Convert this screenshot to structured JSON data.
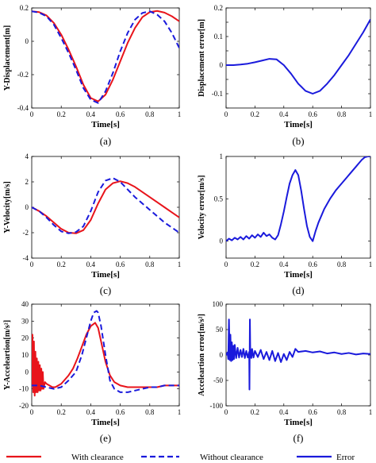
{
  "colors": {
    "with_clearance": "#e8141b",
    "without_clearance": "#1a1adc",
    "error": "#1a1adc"
  },
  "legend": {
    "entries": [
      {
        "key": "with",
        "label": "With clearance",
        "style": "solid",
        "color": "#e8141b"
      },
      {
        "key": "without",
        "label": "Without clearance",
        "style": "dashed",
        "color": "#1a1adc"
      },
      {
        "key": "error",
        "label": "Error",
        "style": "solid",
        "color": "#1a1adc"
      }
    ]
  },
  "chart_data": [
    {
      "id": "a",
      "caption": "(a)",
      "type": "line",
      "xlabel": "Time[s]",
      "ylabel": "Y-Displacement[m]",
      "xlim": [
        0,
        1
      ],
      "ylim": [
        -0.4,
        0.2
      ],
      "xticks": [
        0,
        0.2,
        0.4,
        0.6,
        0.8,
        1
      ],
      "xtick_labels": [
        "0",
        "0.2",
        "0.4",
        "0.6",
        "0.8",
        "1"
      ],
      "yticks": [
        -0.4,
        -0.2,
        0,
        0.2
      ],
      "ytick_labels": [
        "-0.4",
        "-0.2",
        "0",
        "0.2"
      ],
      "series": [
        {
          "key": "with",
          "x": [
            0,
            0.05,
            0.1,
            0.15,
            0.2,
            0.25,
            0.3,
            0.35,
            0.4,
            0.45,
            0.5,
            0.55,
            0.6,
            0.65,
            0.7,
            0.75,
            0.8,
            0.85,
            0.9,
            0.95,
            1.0
          ],
          "y": [
            0.18,
            0.175,
            0.155,
            0.11,
            0.04,
            -0.05,
            -0.15,
            -0.26,
            -0.34,
            -0.36,
            -0.32,
            -0.23,
            -0.12,
            -0.01,
            0.08,
            0.145,
            0.175,
            0.182,
            0.172,
            0.15,
            0.12
          ]
        },
        {
          "key": "without",
          "x": [
            0,
            0.05,
            0.1,
            0.15,
            0.2,
            0.25,
            0.3,
            0.35,
            0.4,
            0.45,
            0.5,
            0.55,
            0.6,
            0.65,
            0.7,
            0.75,
            0.8,
            0.85,
            0.9,
            0.95,
            1.0
          ],
          "y": [
            0.18,
            0.172,
            0.15,
            0.1,
            0.02,
            -0.07,
            -0.17,
            -0.28,
            -0.35,
            -0.37,
            -0.3,
            -0.19,
            -0.06,
            0.05,
            0.13,
            0.17,
            0.18,
            0.16,
            0.12,
            0.05,
            -0.04
          ]
        }
      ]
    },
    {
      "id": "b",
      "caption": "(b)",
      "type": "line",
      "xlabel": "Time[s]",
      "ylabel": "Displacement error[m]",
      "xlim": [
        0,
        1
      ],
      "ylim": [
        -0.15,
        0.2
      ],
      "xticks": [
        0,
        0.2,
        0.4,
        0.6,
        0.8,
        1
      ],
      "xtick_labels": [
        "0",
        "0.2",
        "0.4",
        "0.6",
        "0.8",
        "1"
      ],
      "yticks": [
        -0.15,
        -0.1,
        -0.05,
        0,
        0.05,
        0.1,
        0.15,
        0.2
      ],
      "ytick_labels": [
        "",
        "-0.1",
        "",
        "0",
        "",
        "0.1",
        "",
        "0.2"
      ],
      "series": [
        {
          "key": "error",
          "x": [
            0,
            0.05,
            0.1,
            0.15,
            0.2,
            0.25,
            0.3,
            0.35,
            0.4,
            0.45,
            0.5,
            0.55,
            0.6,
            0.65,
            0.7,
            0.75,
            0.8,
            0.85,
            0.9,
            0.95,
            1.0
          ],
          "y": [
            0,
            0.0,
            0.002,
            0.005,
            0.01,
            0.016,
            0.022,
            0.02,
            0.0,
            -0.03,
            -0.065,
            -0.09,
            -0.1,
            -0.09,
            -0.065,
            -0.035,
            0.0,
            0.035,
            0.075,
            0.115,
            0.16
          ]
        }
      ]
    },
    {
      "id": "c",
      "caption": "(c)",
      "type": "line",
      "xlabel": "Time[s]",
      "ylabel": "Y-Velocity[m/s]",
      "xlim": [
        0,
        1
      ],
      "ylim": [
        -4,
        4
      ],
      "xticks": [
        0,
        0.2,
        0.4,
        0.6,
        0.8,
        1
      ],
      "xtick_labels": [
        "0",
        "0.2",
        "0.4",
        "0.6",
        "0.8",
        "1"
      ],
      "yticks": [
        -4,
        -2,
        0,
        2,
        4
      ],
      "ytick_labels": [
        "-4",
        "-2",
        "0",
        "2",
        "4"
      ],
      "series": [
        {
          "key": "with",
          "x": [
            0,
            0.05,
            0.1,
            0.15,
            0.2,
            0.25,
            0.3,
            0.35,
            0.4,
            0.45,
            0.5,
            0.55,
            0.6,
            0.65,
            0.7,
            0.75,
            0.8,
            0.85,
            0.9,
            0.95,
            1.0
          ],
          "y": [
            0,
            -0.3,
            -0.7,
            -1.2,
            -1.7,
            -2.0,
            -2.05,
            -1.8,
            -1.0,
            0.3,
            1.4,
            1.9,
            2.05,
            1.9,
            1.6,
            1.2,
            0.8,
            0.4,
            0.0,
            -0.4,
            -0.8
          ]
        },
        {
          "key": "without",
          "x": [
            0,
            0.05,
            0.1,
            0.15,
            0.2,
            0.25,
            0.3,
            0.35,
            0.4,
            0.45,
            0.5,
            0.55,
            0.6,
            0.65,
            0.7,
            0.75,
            0.8,
            0.85,
            0.9,
            0.95,
            1.0
          ],
          "y": [
            0,
            -0.3,
            -0.8,
            -1.4,
            -1.9,
            -2.05,
            -1.95,
            -1.5,
            -0.3,
            1.2,
            2.1,
            2.3,
            2.0,
            1.4,
            0.8,
            0.3,
            -0.2,
            -0.7,
            -1.2,
            -1.6,
            -2.0
          ]
        }
      ]
    },
    {
      "id": "d",
      "caption": "(d)",
      "type": "line",
      "xlabel": "Time[s]",
      "ylabel": "Velocity error[m/s]",
      "xlim": [
        0,
        1
      ],
      "ylim": [
        -0.2,
        1
      ],
      "xticks": [
        0,
        0.2,
        0.4,
        0.6,
        0.8,
        1
      ],
      "xtick_labels": [
        "0",
        "0.2",
        "0.4",
        "0.6",
        "0.8",
        "1"
      ],
      "yticks": [
        0,
        0.5,
        1
      ],
      "ytick_labels": [
        "0",
        "0.5",
        "1"
      ],
      "series": [
        {
          "key": "error",
          "x": [
            0,
            0.02,
            0.04,
            0.06,
            0.08,
            0.1,
            0.12,
            0.14,
            0.16,
            0.18,
            0.2,
            0.22,
            0.24,
            0.26,
            0.28,
            0.3,
            0.32,
            0.34,
            0.36,
            0.38,
            0.4,
            0.42,
            0.44,
            0.46,
            0.48,
            0.5,
            0.52,
            0.54,
            0.56,
            0.58,
            0.6,
            0.62,
            0.64,
            0.66,
            0.68,
            0.7,
            0.72,
            0.74,
            0.76,
            0.78,
            0.8,
            0.82,
            0.84,
            0.86,
            0.88,
            0.9,
            0.92,
            0.94,
            0.96,
            0.98,
            1.0
          ],
          "y": [
            0.0,
            0.03,
            0.01,
            0.04,
            0.02,
            0.05,
            0.02,
            0.06,
            0.03,
            0.07,
            0.04,
            0.08,
            0.05,
            0.1,
            0.06,
            0.08,
            0.04,
            0.02,
            0.07,
            0.2,
            0.35,
            0.52,
            0.68,
            0.78,
            0.84,
            0.78,
            0.6,
            0.38,
            0.18,
            0.05,
            0.0,
            0.12,
            0.22,
            0.3,
            0.38,
            0.44,
            0.5,
            0.55,
            0.6,
            0.64,
            0.68,
            0.72,
            0.76,
            0.8,
            0.84,
            0.88,
            0.92,
            0.96,
            0.99,
            1.0,
            1.0
          ]
        }
      ]
    },
    {
      "id": "e",
      "caption": "(e)",
      "type": "line",
      "xlabel": "Time[s]",
      "ylabel": "Y-Acceleartion[m/s²]",
      "xlim": [
        0,
        1
      ],
      "ylim": [
        -20,
        40
      ],
      "xticks": [
        0,
        0.2,
        0.4,
        0.6,
        0.8,
        1
      ],
      "xtick_labels": [
        "0",
        "0.2",
        "0.4",
        "0.6",
        "0.8",
        "1"
      ],
      "yticks": [
        -20,
        -10,
        0,
        10,
        20,
        30,
        40
      ],
      "ytick_labels": [
        "-20",
        "-10",
        "0",
        "10",
        "20",
        "30",
        "40"
      ],
      "series": [
        {
          "key": "with",
          "x": [
            0,
            0.005,
            0.01,
            0.015,
            0.02,
            0.025,
            0.03,
            0.035,
            0.04,
            0.045,
            0.05,
            0.055,
            0.06,
            0.065,
            0.07,
            0.075,
            0.08,
            0.09,
            0.1,
            0.12,
            0.14,
            0.16,
            0.18,
            0.2,
            0.22,
            0.25,
            0.28,
            0.31,
            0.34,
            0.37,
            0.4,
            0.43,
            0.45,
            0.47,
            0.5,
            0.53,
            0.56,
            0.6,
            0.65,
            0.7,
            0.75,
            0.8,
            0.85,
            0.9,
            0.95,
            1.0
          ],
          "y": [
            -8,
            22,
            -12,
            18,
            -14,
            12,
            -12,
            8,
            -12,
            6,
            -11,
            4,
            -11,
            2,
            -10,
            0,
            -10,
            -6,
            -7,
            -8,
            -9,
            -9,
            -8,
            -7,
            -5,
            -2,
            2,
            8,
            15,
            22,
            27,
            29,
            26,
            18,
            6,
            -2,
            -6,
            -8,
            -9,
            -9,
            -9,
            -9,
            -9,
            -8,
            -8,
            -8
          ]
        },
        {
          "key": "without",
          "x": [
            0,
            0.05,
            0.1,
            0.15,
            0.2,
            0.25,
            0.3,
            0.34,
            0.37,
            0.4,
            0.42,
            0.44,
            0.45,
            0.47,
            0.5,
            0.53,
            0.56,
            0.6,
            0.65,
            0.7,
            0.75,
            0.8,
            0.85,
            0.9,
            0.95,
            1.0
          ],
          "y": [
            -8,
            -8,
            -9,
            -10,
            -9,
            -5,
            0,
            10,
            20,
            30,
            35,
            36,
            35,
            27,
            10,
            -5,
            -10,
            -12,
            -12,
            -11,
            -10,
            -9,
            -9,
            -8,
            -8,
            -8
          ]
        }
      ]
    },
    {
      "id": "f",
      "caption": "(f)",
      "type": "line",
      "xlabel": "Time[s]",
      "ylabel": "Acceleartion error[m/s²]",
      "xlim": [
        0,
        1
      ],
      "ylim": [
        -100,
        100
      ],
      "xticks": [
        0,
        0.2,
        0.4,
        0.6,
        0.8,
        1
      ],
      "xtick_labels": [
        "0",
        "0.2",
        "0.4",
        "0.6",
        "0.8",
        "1"
      ],
      "yticks": [
        -100,
        -50,
        0,
        50,
        100
      ],
      "ytick_labels": [
        "-100",
        "-50",
        "0",
        "50",
        "100"
      ],
      "series": [
        {
          "key": "error",
          "x": [
            0,
            0.01,
            0.015,
            0.02,
            0.025,
            0.03,
            0.035,
            0.04,
            0.045,
            0.05,
            0.055,
            0.06,
            0.07,
            0.08,
            0.09,
            0.1,
            0.11,
            0.12,
            0.13,
            0.14,
            0.15,
            0.16,
            0.162,
            0.165,
            0.168,
            0.17,
            0.175,
            0.18,
            0.19,
            0.2,
            0.22,
            0.24,
            0.26,
            0.28,
            0.3,
            0.32,
            0.34,
            0.36,
            0.38,
            0.4,
            0.42,
            0.44,
            0.46,
            0.48,
            0.5,
            0.55,
            0.6,
            0.65,
            0.7,
            0.75,
            0.8,
            0.85,
            0.9,
            0.95,
            1.0
          ],
          "y": [
            0,
            5,
            -8,
            70,
            -10,
            40,
            -12,
            25,
            -10,
            18,
            -8,
            20,
            -6,
            14,
            -5,
            10,
            -4,
            12,
            -6,
            8,
            -5,
            6,
            -68,
            70,
            -4,
            10,
            -6,
            12,
            -5,
            8,
            -4,
            10,
            -8,
            6,
            -10,
            8,
            -12,
            4,
            -14,
            2,
            -10,
            6,
            -4,
            12,
            6,
            8,
            5,
            7,
            3,
            5,
            2,
            4,
            1,
            3,
            2
          ]
        }
      ]
    }
  ]
}
